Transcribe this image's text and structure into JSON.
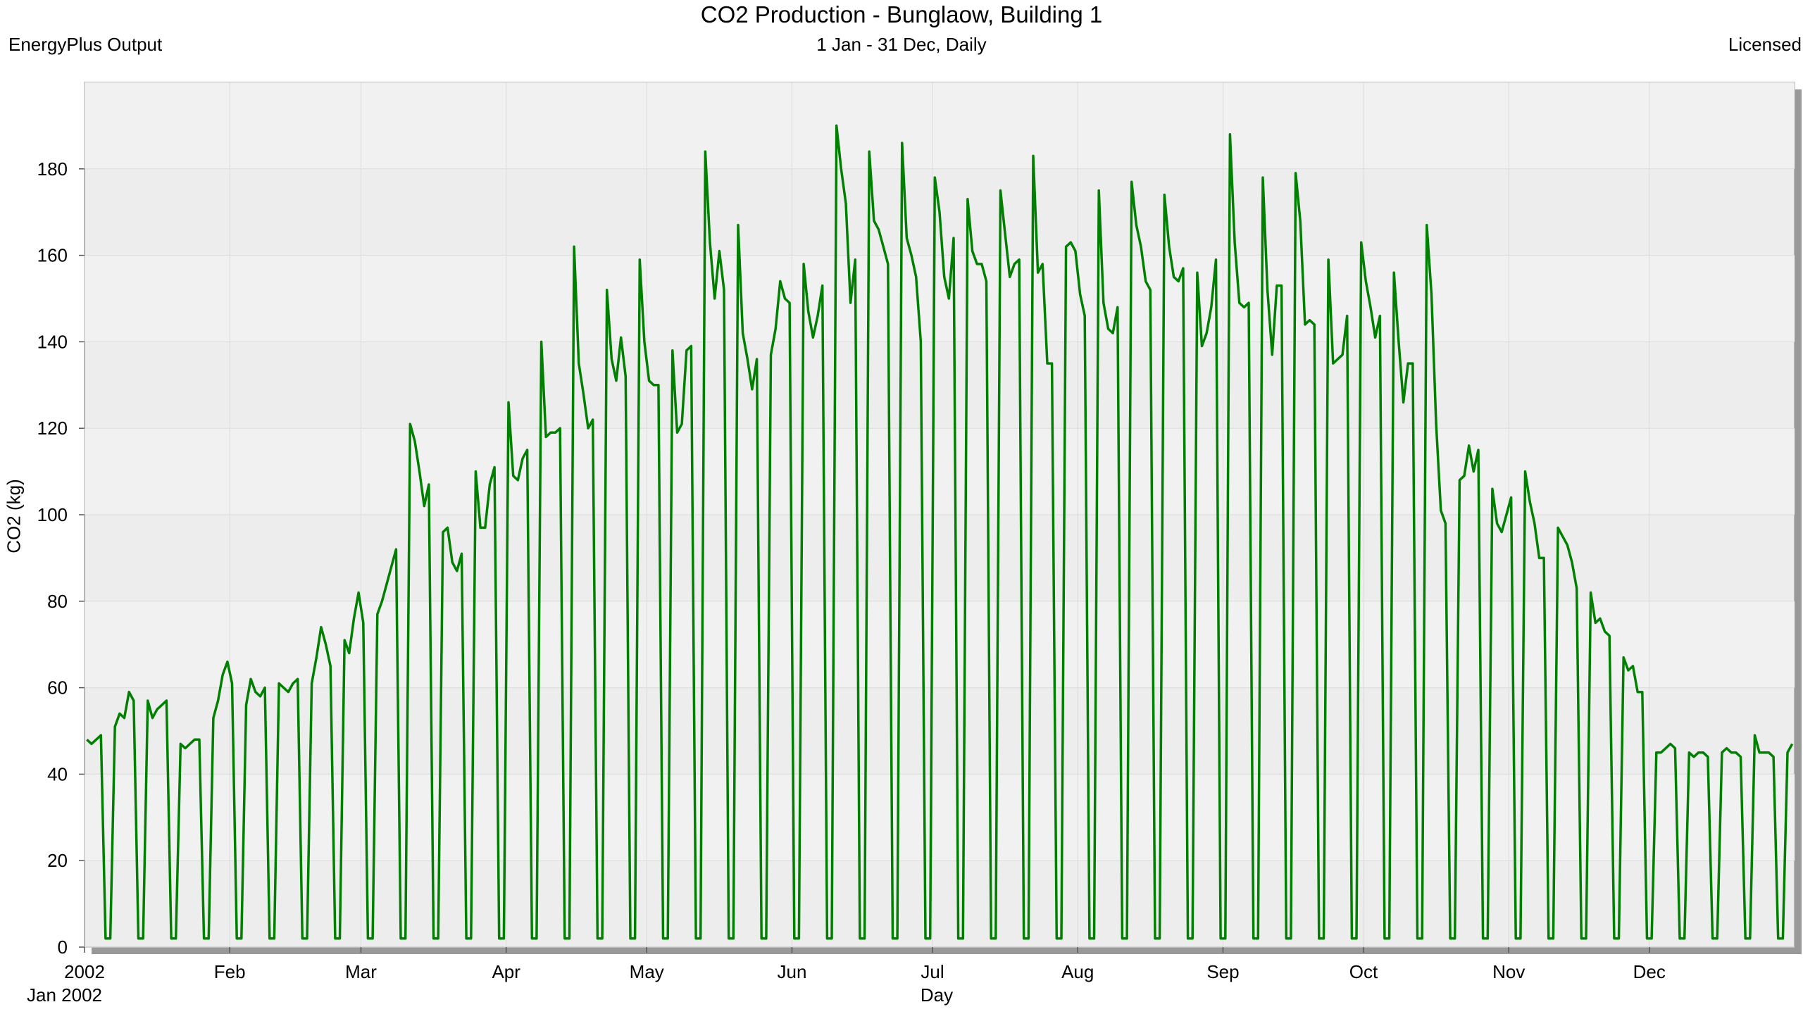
{
  "header": {
    "left": "EnergyPlus Output",
    "right": "Licensed"
  },
  "chart_data": {
    "type": "line",
    "title": "CO2 Production - Bunglaow, Building 1",
    "subtitle": "1 Jan - 31 Dec, Daily",
    "xlabel": "Day",
    "ylabel": "CO2 (kg)",
    "x_year_label": "Jan  2002",
    "x_range_days": [
      0,
      365
    ],
    "ylim": [
      0,
      200
    ],
    "yticks": [
      0,
      20,
      40,
      60,
      80,
      100,
      120,
      140,
      160,
      180
    ],
    "month_ticks": [
      {
        "label": "2002",
        "day": 0
      },
      {
        "label": "Feb",
        "day": 31
      },
      {
        "label": "Mar",
        "day": 59
      },
      {
        "label": "Apr",
        "day": 90
      },
      {
        "label": "May",
        "day": 120
      },
      {
        "label": "Jun",
        "day": 151
      },
      {
        "label": "Jul",
        "day": 181
      },
      {
        "label": "Aug",
        "day": 212
      },
      {
        "label": "Sep",
        "day": 243
      },
      {
        "label": "Oct",
        "day": 273
      },
      {
        "label": "Nov",
        "day": 304
      },
      {
        "label": "Dec",
        "day": 334
      }
    ],
    "grid": true,
    "line_color": "#008000",
    "plot_background": "#ededed",
    "series": [
      {
        "values": [
          48,
          47,
          48,
          49,
          2,
          2,
          51,
          54,
          53,
          59,
          57,
          2,
          2,
          57,
          53,
          55,
          56,
          57,
          2,
          2,
          47,
          46,
          47,
          48,
          48,
          2,
          2,
          53,
          57,
          63,
          66,
          61,
          2,
          2,
          56,
          62,
          59,
          58,
          60,
          2,
          2,
          61,
          60,
          59,
          61,
          62,
          2,
          2,
          61,
          67,
          74,
          70,
          65,
          2,
          2,
          71,
          68,
          76,
          82,
          75,
          2,
          2,
          77,
          80,
          84,
          88,
          92,
          2,
          2,
          121,
          117,
          110,
          102,
          107,
          2,
          2,
          96,
          97,
          89,
          87,
          91,
          2,
          2,
          110,
          97,
          97,
          107,
          111,
          2,
          2,
          126,
          109,
          108,
          113,
          115,
          2,
          2,
          140,
          118,
          119,
          119,
          120,
          2,
          2,
          162,
          135,
          128,
          120,
          122,
          2,
          2,
          152,
          136,
          131,
          141,
          132,
          2,
          2,
          159,
          140,
          131,
          130,
          130,
          2,
          2,
          138,
          119,
          121,
          138,
          139,
          2,
          2,
          184,
          163,
          150,
          161,
          152,
          2,
          2,
          167,
          142,
          136,
          129,
          136,
          2,
          2,
          137,
          143,
          154,
          150,
          149,
          2,
          2,
          158,
          147,
          141,
          146,
          153,
          2,
          2,
          190,
          180,
          172,
          149,
          159,
          2,
          2,
          184,
          168,
          166,
          162,
          158,
          2,
          2,
          186,
          164,
          160,
          155,
          140,
          2,
          2,
          178,
          170,
          155,
          150,
          164,
          2,
          2,
          173,
          161,
          158,
          158,
          154,
          2,
          2,
          175,
          165,
          155,
          158,
          159,
          2,
          2,
          183,
          156,
          158,
          135,
          135,
          2,
          2,
          162,
          163,
          161,
          151,
          146,
          2,
          2,
          175,
          149,
          143,
          142,
          148,
          2,
          2,
          177,
          167,
          162,
          154,
          152,
          2,
          2,
          174,
          162,
          155,
          154,
          157,
          2,
          2,
          156,
          139,
          142,
          148,
          159,
          2,
          2,
          188,
          163,
          149,
          148,
          149,
          2,
          2,
          178,
          152,
          137,
          153,
          153,
          2,
          2,
          179,
          168,
          144,
          145,
          144,
          2,
          2,
          159,
          135,
          136,
          137,
          146,
          2,
          2,
          163,
          154,
          148,
          141,
          146,
          2,
          2,
          156,
          140,
          126,
          135,
          135,
          2,
          2,
          167,
          151,
          121,
          101,
          98,
          2,
          2,
          108,
          109,
          116,
          110,
          115,
          2,
          2,
          106,
          98,
          96,
          100,
          104,
          2,
          2,
          110,
          103,
          98,
          90,
          90,
          2,
          2,
          97,
          95,
          93,
          89,
          83,
          2,
          2,
          82,
          75,
          76,
          73,
          72,
          2,
          2,
          67,
          64,
          65,
          59,
          59,
          2,
          2,
          45,
          45,
          46,
          47,
          46,
          2,
          2,
          45,
          44,
          45,
          45,
          44,
          2,
          2,
          45,
          46,
          45,
          45,
          44,
          2,
          2,
          49,
          45,
          45,
          45,
          44,
          2,
          2,
          45,
          47
        ]
      }
    ]
  }
}
